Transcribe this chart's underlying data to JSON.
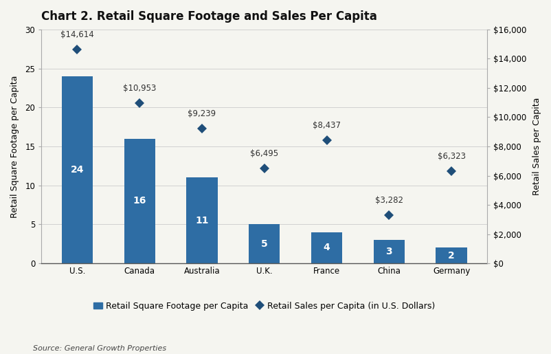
{
  "title": "Chart 2. Retail Square Footage and Sales Per Capita",
  "categories": [
    "U.S.",
    "Canada",
    "Australia",
    "U.K.",
    "France",
    "China",
    "Germany"
  ],
  "bar_values": [
    24,
    16,
    11,
    5,
    4,
    3,
    2
  ],
  "diamond_values": [
    14614,
    10953,
    9239,
    6495,
    8437,
    3282,
    6323
  ],
  "diamond_labels": [
    "$14,614",
    "$10,953",
    "$9,239",
    "$6,495",
    "$8,437",
    "$3,282",
    "$6,323"
  ],
  "bar_color": "#2E6DA4",
  "diamond_color": "#1F4E79",
  "bar_label_color": "#ffffff",
  "ylabel_left": "Retail Square Footage per Capita",
  "ylabel_right": "Retail Sales per Capita",
  "ylim_left": [
    0,
    30
  ],
  "ylim_right": [
    0,
    16000
  ],
  "yticks_left": [
    0,
    5,
    10,
    15,
    20,
    25,
    30
  ],
  "yticks_right": [
    0,
    2000,
    4000,
    6000,
    8000,
    10000,
    12000,
    14000,
    16000
  ],
  "ytick_labels_right": [
    "$0",
    "$2,000",
    "$4,000",
    "$6,000",
    "$8,000",
    "$10,000",
    "$12,000",
    "$14,000",
    "$16,000"
  ],
  "legend_bar_label": "Retail Square Footage per Capita",
  "legend_diamond_label": "Retail Sales per Capita (in U.S. Dollars)",
  "source_text": "Source: General Growth Properties",
  "background_color": "#f5f5f0",
  "plot_bg_color": "#f5f5f0",
  "title_fontsize": 12,
  "axis_label_fontsize": 9,
  "bar_label_fontsize": 10,
  "diamond_label_fontsize": 8.5,
  "tick_fontsize": 8.5,
  "legend_fontsize": 9,
  "source_fontsize": 8
}
